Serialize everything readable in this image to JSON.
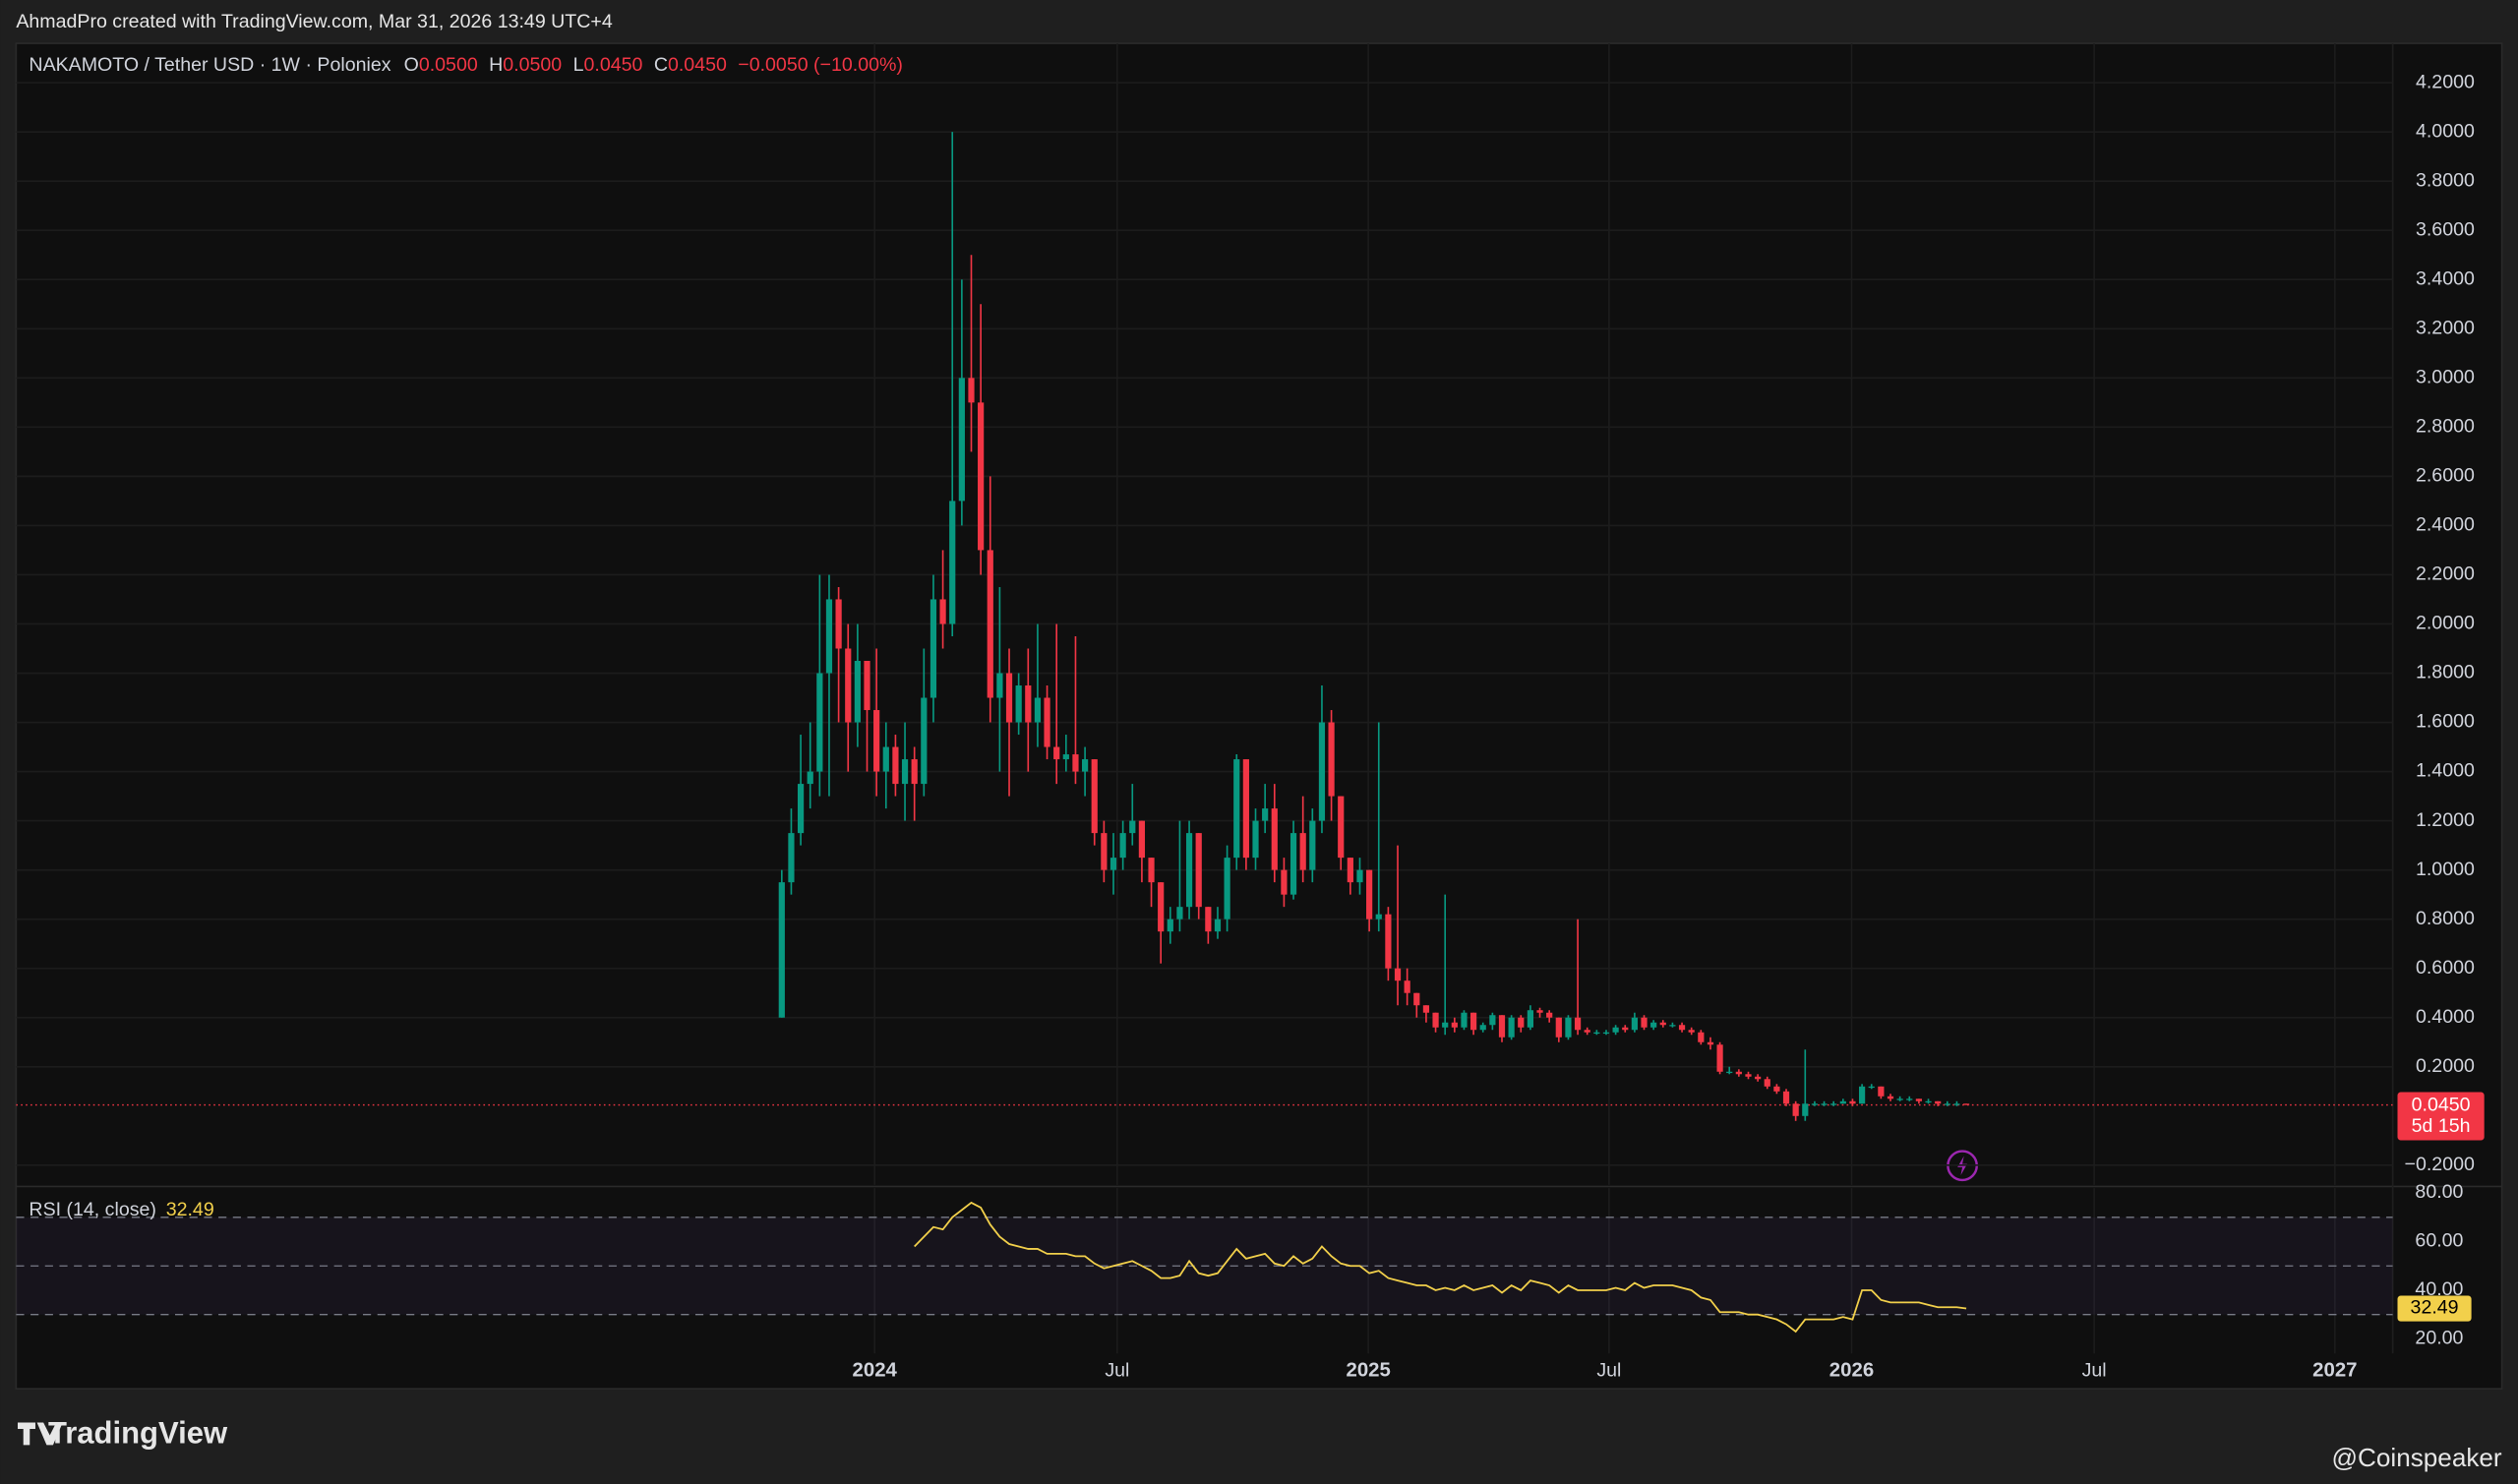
{
  "header": {
    "credit": "AhmadPro created with TradingView.com, Mar 31, 2026 13:49 UTC+4"
  },
  "chart_data": {
    "type": "candlestick",
    "title": "NAKAMOTO / Tether USD · 1W · Poloniex",
    "legend": [
      {
        "key": "O",
        "value": "0.0500"
      },
      {
        "key": "H",
        "value": "0.0500"
      },
      {
        "key": "L",
        "value": "0.0450"
      },
      {
        "key": "C",
        "value": "0.0450"
      }
    ],
    "change": "−0.0050 (−10.00%)",
    "colors": {
      "up": "#089981",
      "down": "#f23645"
    },
    "open": [
      0.4,
      0.95,
      1.15,
      1.35,
      1.4,
      1.8,
      2.1,
      1.9,
      1.6,
      1.85,
      1.65,
      1.4,
      1.5,
      1.35,
      1.45,
      1.35,
      1.7,
      2.1,
      2.0,
      2.5,
      3.0,
      2.9,
      2.3,
      1.7,
      1.8,
      1.6,
      1.75,
      1.6,
      1.7,
      1.5,
      1.45,
      1.47,
      1.4,
      1.45,
      1.15,
      1.0,
      1.05,
      1.15,
      1.2,
      1.05,
      0.95,
      0.75,
      0.8,
      0.85,
      1.15,
      0.85,
      0.75,
      0.8,
      1.05,
      1.45,
      1.05,
      1.2,
      1.25,
      1.0,
      0.9,
      1.15,
      1.0,
      1.2,
      1.6,
      1.3,
      1.05,
      0.95,
      1.0,
      0.8,
      0.82,
      0.6,
      0.55,
      0.5,
      0.45,
      0.42,
      0.36,
      0.38,
      0.36,
      0.42,
      0.35,
      0.37,
      0.41,
      0.32,
      0.4,
      0.36,
      0.43,
      0.42,
      0.4,
      0.32,
      0.4,
      0.35,
      0.34,
      0.34,
      0.34,
      0.36,
      0.35,
      0.4,
      0.36,
      0.38,
      0.37,
      0.37,
      0.35,
      0.34,
      0.3,
      0.29,
      0.18,
      0.18,
      0.17,
      0.16,
      0.15,
      0.12,
      0.1,
      0.05,
      0.0,
      0.05,
      0.05,
      0.05,
      0.05,
      0.06,
      0.05,
      0.12,
      0.12,
      0.08,
      0.07,
      0.07,
      0.07,
      0.06,
      0.06,
      0.05,
      0.05,
      0.05
    ],
    "high": [
      1.0,
      1.25,
      1.55,
      1.6,
      2.2,
      2.2,
      2.15,
      2.0,
      2.0,
      1.85,
      1.9,
      1.6,
      1.55,
      1.6,
      1.5,
      1.9,
      2.2,
      2.3,
      4.0,
      3.4,
      3.5,
      3.3,
      2.6,
      2.15,
      1.9,
      1.8,
      1.9,
      2.0,
      1.75,
      2.0,
      1.55,
      1.95,
      1.5,
      1.45,
      1.2,
      1.15,
      1.2,
      1.35,
      1.2,
      1.05,
      0.95,
      0.85,
      1.2,
      1.2,
      1.15,
      0.85,
      0.85,
      1.1,
      1.47,
      1.45,
      1.25,
      1.35,
      1.35,
      1.05,
      1.2,
      1.3,
      1.25,
      1.75,
      1.65,
      1.3,
      1.05,
      1.05,
      1.0,
      1.6,
      0.85,
      1.1,
      0.6,
      0.5,
      0.45,
      0.42,
      0.9,
      0.4,
      0.43,
      0.42,
      0.38,
      0.42,
      0.41,
      0.41,
      0.41,
      0.45,
      0.44,
      0.43,
      0.4,
      0.41,
      0.8,
      0.36,
      0.35,
      0.35,
      0.37,
      0.37,
      0.42,
      0.41,
      0.39,
      0.39,
      0.38,
      0.38,
      0.36,
      0.35,
      0.32,
      0.3,
      0.2,
      0.19,
      0.18,
      0.17,
      0.16,
      0.13,
      0.11,
      0.06,
      0.27,
      0.06,
      0.06,
      0.06,
      0.07,
      0.07,
      0.13,
      0.13,
      0.12,
      0.09,
      0.08,
      0.08,
      0.07,
      0.07,
      0.06,
      0.06,
      0.06,
      0.05
    ],
    "low": [
      0.4,
      0.9,
      1.1,
      1.25,
      1.3,
      1.3,
      1.6,
      1.4,
      1.5,
      1.4,
      1.3,
      1.25,
      1.3,
      1.2,
      1.2,
      1.3,
      1.6,
      1.9,
      1.95,
      2.4,
      2.7,
      2.2,
      1.6,
      1.4,
      1.3,
      1.55,
      1.4,
      1.5,
      1.45,
      1.35,
      1.4,
      1.35,
      1.3,
      1.1,
      0.95,
      0.9,
      1.0,
      1.1,
      0.95,
      0.85,
      0.62,
      0.7,
      0.75,
      0.8,
      0.8,
      0.7,
      0.72,
      0.75,
      1.0,
      1.0,
      1.0,
      1.15,
      0.95,
      0.85,
      0.88,
      0.95,
      0.95,
      1.15,
      1.2,
      1.0,
      0.9,
      0.9,
      0.75,
      0.75,
      0.55,
      0.45,
      0.45,
      0.4,
      0.38,
      0.34,
      0.33,
      0.34,
      0.35,
      0.33,
      0.34,
      0.35,
      0.3,
      0.31,
      0.34,
      0.35,
      0.4,
      0.38,
      0.3,
      0.31,
      0.33,
      0.33,
      0.33,
      0.33,
      0.33,
      0.34,
      0.34,
      0.35,
      0.35,
      0.36,
      0.36,
      0.34,
      0.33,
      0.29,
      0.27,
      0.17,
      0.17,
      0.16,
      0.15,
      0.14,
      0.11,
      0.09,
      0.04,
      -0.02,
      -0.02,
      0.04,
      0.04,
      0.04,
      0.05,
      0.04,
      0.05,
      0.11,
      0.07,
      0.06,
      0.06,
      0.06,
      0.05,
      0.05,
      0.04,
      0.04,
      0.04,
      0.045
    ],
    "close": [
      0.95,
      1.15,
      1.35,
      1.4,
      1.8,
      2.1,
      1.9,
      1.6,
      1.85,
      1.65,
      1.4,
      1.5,
      1.35,
      1.45,
      1.35,
      1.7,
      2.1,
      2.0,
      2.5,
      3.0,
      2.9,
      2.3,
      1.7,
      1.8,
      1.6,
      1.75,
      1.6,
      1.7,
      1.5,
      1.45,
      1.47,
      1.4,
      1.45,
      1.15,
      1.0,
      1.05,
      1.15,
      1.2,
      1.05,
      0.95,
      0.75,
      0.8,
      0.85,
      1.15,
      0.85,
      0.75,
      0.8,
      1.05,
      1.45,
      1.05,
      1.2,
      1.25,
      1.0,
      0.9,
      1.15,
      1.0,
      1.2,
      1.6,
      1.3,
      1.05,
      0.95,
      1.0,
      0.8,
      0.82,
      0.6,
      0.55,
      0.5,
      0.45,
      0.42,
      0.36,
      0.38,
      0.36,
      0.42,
      0.35,
      0.37,
      0.41,
      0.32,
      0.4,
      0.36,
      0.43,
      0.42,
      0.4,
      0.32,
      0.4,
      0.35,
      0.34,
      0.34,
      0.34,
      0.36,
      0.35,
      0.4,
      0.36,
      0.38,
      0.37,
      0.37,
      0.35,
      0.34,
      0.3,
      0.29,
      0.18,
      0.18,
      0.17,
      0.16,
      0.15,
      0.12,
      0.1,
      0.05,
      0.0,
      0.05,
      0.05,
      0.05,
      0.05,
      0.06,
      0.05,
      0.12,
      0.12,
      0.08,
      0.07,
      0.07,
      0.07,
      0.06,
      0.06,
      0.05,
      0.05,
      0.05,
      0.045
    ],
    "xlim": [
      -80.8,
      170
    ],
    "xticks": [
      {
        "value": 9.8,
        "label": "2024"
      },
      {
        "value": 35.4,
        "label": "Jul"
      },
      {
        "value": 61.9,
        "label": "2025"
      },
      {
        "value": 87.3,
        "label": "Jul"
      },
      {
        "value": 112.9,
        "label": "2026"
      },
      {
        "value": 138.5,
        "label": "Jul"
      },
      {
        "value": 163.9,
        "label": "2027"
      }
    ],
    "ylim": [
      -0.28,
      4.36
    ],
    "yticks": [
      {
        "value": 4.2,
        "label": "4.2000"
      },
      {
        "value": 4.0,
        "label": "4.0000"
      },
      {
        "value": 3.8,
        "label": "3.8000"
      },
      {
        "value": 3.6,
        "label": "3.6000"
      },
      {
        "value": 3.4,
        "label": "3.4000"
      },
      {
        "value": 3.2,
        "label": "3.2000"
      },
      {
        "value": 3.0,
        "label": "3.0000"
      },
      {
        "value": 2.8,
        "label": "2.8000"
      },
      {
        "value": 2.6,
        "label": "2.6000"
      },
      {
        "value": 2.4,
        "label": "2.4000"
      },
      {
        "value": 2.2,
        "label": "2.2000"
      },
      {
        "value": 2.0,
        "label": "2.0000"
      },
      {
        "value": 1.8,
        "label": "1.8000"
      },
      {
        "value": 1.6,
        "label": "1.6000"
      },
      {
        "value": 1.4,
        "label": "1.4000"
      },
      {
        "value": 1.2,
        "label": "1.2000"
      },
      {
        "value": 1.0,
        "label": "1.0000"
      },
      {
        "value": 0.8,
        "label": "0.8000"
      },
      {
        "value": 0.6,
        "label": "0.6000"
      },
      {
        "value": 0.4,
        "label": "0.4000"
      },
      {
        "value": 0.2,
        "label": "0.2000"
      },
      {
        "value": -0.2,
        "label": "−0.2000"
      }
    ],
    "grid": true,
    "last_price": {
      "value": 0.045,
      "label": "0.0450"
    },
    "countdown": "5d 15h",
    "rsi": {
      "name": "RSI (14, close)",
      "color": "#f2d04b",
      "values": [
        null,
        null,
        null,
        null,
        null,
        null,
        null,
        null,
        null,
        null,
        null,
        null,
        null,
        null,
        58,
        62,
        66,
        65,
        70,
        73,
        76,
        74,
        67,
        62,
        59,
        58,
        57,
        57,
        55,
        55,
        55,
        54,
        54,
        51,
        49,
        50,
        51,
        52,
        50,
        48,
        45,
        45,
        46,
        52,
        47,
        46,
        47,
        52,
        57,
        53,
        54,
        55,
        51,
        50,
        54,
        51,
        53,
        58,
        54,
        51,
        50,
        50,
        47,
        48,
        45,
        44,
        43,
        42,
        42,
        40,
        41,
        40,
        42,
        40,
        41,
        42,
        39,
        42,
        40,
        44,
        43,
        42,
        39,
        42,
        40,
        40,
        40,
        40,
        41,
        40,
        43,
        41,
        42,
        42,
        42,
        41,
        40,
        37,
        36,
        31,
        31,
        31,
        30,
        30,
        29,
        28,
        26,
        23,
        28,
        28,
        28,
        28,
        29,
        28,
        40,
        40,
        36,
        35,
        35,
        35,
        35,
        34,
        33,
        33,
        33,
        32.49
      ],
      "ylim": [
        14,
        82
      ],
      "yticks": [
        {
          "value": 80,
          "label": "80.00"
        },
        {
          "value": 60,
          "label": "60.00"
        },
        {
          "value": 40,
          "label": "40.00"
        },
        {
          "value": 20,
          "label": "20.00"
        }
      ],
      "bands": [
        70,
        50,
        30
      ]
    }
  },
  "footer": {
    "brand": "TradingView",
    "source": "@Coinspeaker"
  }
}
